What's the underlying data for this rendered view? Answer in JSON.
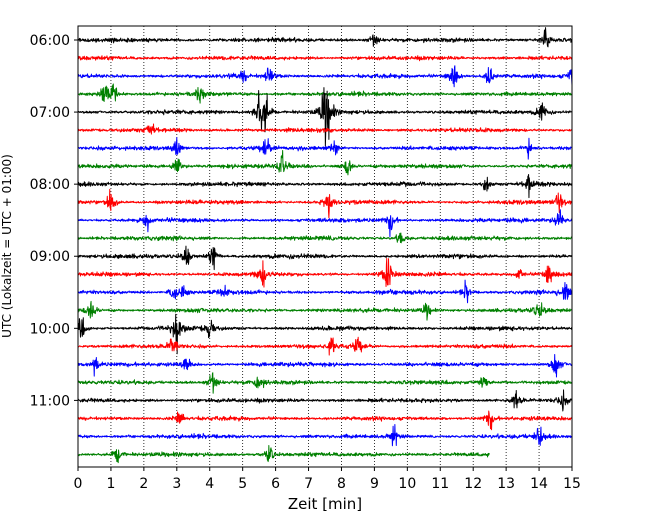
{
  "chart_data": {
    "type": "line",
    "title": "",
    "xlabel": "Zeit  [min]",
    "ylabel": "UTC (Lokalzeit = UTC + 01:00)",
    "xlim": [
      0,
      15
    ],
    "x_ticks": [
      "0",
      "1",
      "2",
      "3",
      "4",
      "5",
      "6",
      "7",
      "8",
      "9",
      "10",
      "11",
      "12",
      "13",
      "14",
      "15"
    ],
    "y_ticks": [
      "06:00",
      "07:00",
      "08:00",
      "09:00",
      "10:00",
      "11:00"
    ],
    "grid": "vertical dotted",
    "interval_minutes": 15,
    "colors": [
      "#000000",
      "#ff0000",
      "#0000ff",
      "#008000"
    ],
    "traces": [
      {
        "start": "06:00",
        "end_minute": 15,
        "color": "#000000",
        "events": [
          [
            9,
            1.0
          ],
          [
            14.2,
            1.4
          ]
        ]
      },
      {
        "start": "06:15",
        "end_minute": 15,
        "color": "#ff0000",
        "events": []
      },
      {
        "start": "06:30",
        "end_minute": 15,
        "color": "#0000ff",
        "events": [
          [
            5,
            1.0
          ],
          [
            5.8,
            1.2
          ],
          [
            11.4,
            1.8
          ],
          [
            12.5,
            1.6
          ],
          [
            15,
            1.2
          ]
        ]
      },
      {
        "start": "06:45",
        "end_minute": 15,
        "color": "#008000",
        "events": [
          [
            0.8,
            1.6
          ],
          [
            1.1,
            1.4
          ],
          [
            3.7,
            1.0
          ]
        ]
      },
      {
        "start": "07:00",
        "end_minute": 15,
        "color": "#000000",
        "events": [
          [
            5.5,
            2.6
          ],
          [
            5.7,
            2.2
          ],
          [
            7.5,
            2.8
          ],
          [
            7.6,
            2.4
          ],
          [
            14.1,
            1.4
          ]
        ]
      },
      {
        "start": "07:15",
        "end_minute": 15,
        "color": "#ff0000",
        "events": [
          [
            2.2,
            1.0
          ]
        ]
      },
      {
        "start": "07:30",
        "end_minute": 15,
        "color": "#0000ff",
        "events": [
          [
            3.0,
            1.4
          ],
          [
            5.7,
            1.2
          ],
          [
            7.8,
            1.0
          ],
          [
            13.7,
            1.2
          ]
        ]
      },
      {
        "start": "07:45",
        "end_minute": 15,
        "color": "#008000",
        "events": [
          [
            3.0,
            1.2
          ],
          [
            6.2,
            1.6
          ],
          [
            8.2,
            1.4
          ]
        ]
      },
      {
        "start": "08:00",
        "end_minute": 15,
        "color": "#000000",
        "events": [
          [
            12.4,
            1.0
          ],
          [
            13.7,
            1.4
          ]
        ]
      },
      {
        "start": "08:15",
        "end_minute": 15,
        "color": "#ff0000",
        "events": [
          [
            1.0,
            1.6
          ],
          [
            7.6,
            1.6
          ],
          [
            14.6,
            1.2
          ]
        ]
      },
      {
        "start": "08:30",
        "end_minute": 15,
        "color": "#0000ff",
        "events": [
          [
            2.1,
            1.2
          ],
          [
            9.5,
            1.6
          ],
          [
            14.6,
            1.4
          ]
        ]
      },
      {
        "start": "08:45",
        "end_minute": 15,
        "color": "#008000",
        "events": [
          [
            9.8,
            1.0
          ]
        ]
      },
      {
        "start": "09:00",
        "end_minute": 15,
        "color": "#000000",
        "events": [
          [
            3.3,
            1.4
          ],
          [
            4.1,
            1.6
          ]
        ]
      },
      {
        "start": "09:15",
        "end_minute": 15,
        "color": "#ff0000",
        "events": [
          [
            5.6,
            1.4
          ],
          [
            9.4,
            2.0
          ],
          [
            13.4,
            1.0
          ],
          [
            14.3,
            1.4
          ]
        ]
      },
      {
        "start": "09:30",
        "end_minute": 15,
        "color": "#0000ff",
        "events": [
          [
            2.9,
            1.2
          ],
          [
            3.2,
            1.0
          ],
          [
            4.4,
            1.0
          ],
          [
            11.8,
            1.2
          ],
          [
            14.8,
            1.2
          ]
        ]
      },
      {
        "start": "09:45",
        "end_minute": 15,
        "color": "#008000",
        "events": [
          [
            0.4,
            1.6
          ],
          [
            10.6,
            1.0
          ],
          [
            14.0,
            1.0
          ]
        ]
      },
      {
        "start": "10:00",
        "end_minute": 15,
        "color": "#000000",
        "events": [
          [
            0.1,
            1.6
          ],
          [
            3.0,
            2.2
          ],
          [
            4.0,
            1.6
          ]
        ]
      },
      {
        "start": "10:15",
        "end_minute": 15,
        "color": "#ff0000",
        "events": [
          [
            2.9,
            1.6
          ],
          [
            7.7,
            1.2
          ],
          [
            8.5,
            1.2
          ]
        ]
      },
      {
        "start": "10:30",
        "end_minute": 15,
        "color": "#0000ff",
        "events": [
          [
            0.5,
            1.2
          ],
          [
            3.3,
            1.2
          ],
          [
            14.5,
            1.4
          ]
        ]
      },
      {
        "start": "10:45",
        "end_minute": 15,
        "color": "#008000",
        "events": [
          [
            4.1,
            1.6
          ],
          [
            5.5,
            1.2
          ],
          [
            12.3,
            1.0
          ]
        ]
      },
      {
        "start": "11:00",
        "end_minute": 15,
        "color": "#000000",
        "events": [
          [
            13.3,
            1.4
          ],
          [
            14.7,
            1.0
          ]
        ]
      },
      {
        "start": "11:15",
        "end_minute": 15,
        "color": "#ff0000",
        "events": [
          [
            3.1,
            1.0
          ],
          [
            12.5,
            1.4
          ]
        ]
      },
      {
        "start": "11:30",
        "end_minute": 15,
        "color": "#0000ff",
        "events": [
          [
            9.6,
            1.4
          ],
          [
            14.0,
            1.2
          ]
        ]
      },
      {
        "start": "11:45",
        "end_minute": 12.5,
        "color": "#008000",
        "events": [
          [
            1.2,
            1.2
          ],
          [
            5.8,
            1.2
          ]
        ]
      }
    ]
  }
}
